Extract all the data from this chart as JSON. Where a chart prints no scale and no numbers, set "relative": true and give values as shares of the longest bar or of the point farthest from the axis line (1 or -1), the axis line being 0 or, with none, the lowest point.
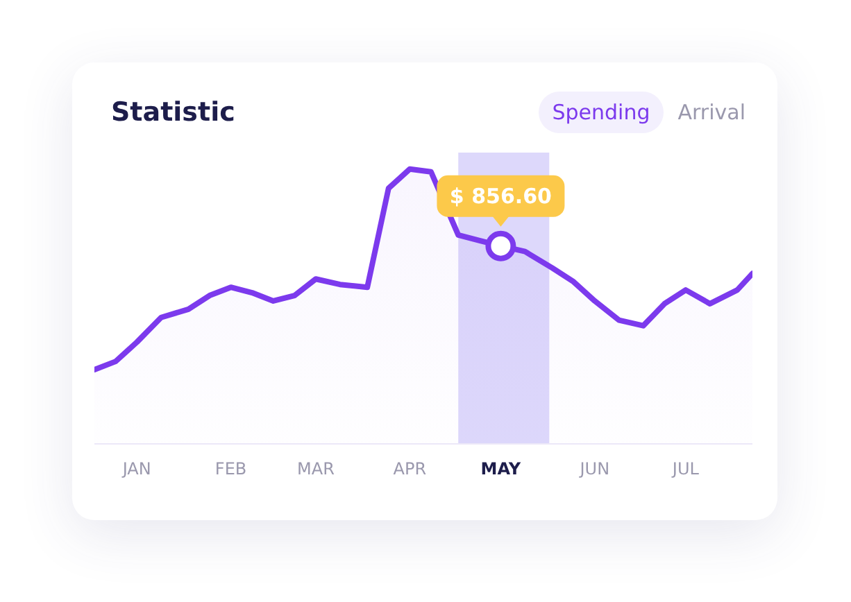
{
  "chart_data": {
    "type": "area",
    "title": "Statistic",
    "relative": true,
    "x": [
      "--01-01",
      "--01-08",
      "--01-15",
      "--01-23",
      "--02-01",
      "--02-08",
      "--02-15",
      "--02-22",
      "--03-01",
      "--03-08",
      "--03-15",
      "--03-23",
      "--04-01",
      "--04-08",
      "--04-15",
      "--04-22",
      "--05-01",
      "--05-08",
      "--05-15",
      "--05-23",
      "--06-01",
      "--06-08",
      "--06-15",
      "--06-23",
      "--07-01",
      "--07-08",
      "--07-15",
      "--07-23",
      "--08-01",
      "--08-06"
    ],
    "series": [
      {
        "name": "Spending",
        "color": "#7c3aed",
        "values": [
          0.27,
          0.3,
          0.37,
          0.46,
          0.49,
          0.54,
          0.57,
          0.55,
          0.52,
          0.54,
          0.6,
          0.58,
          0.57,
          0.93,
          1.0,
          0.99,
          0.76,
          0.74,
          0.72,
          0.7,
          0.64,
          0.59,
          0.52,
          0.45,
          0.43,
          0.51,
          0.56,
          0.51,
          0.56,
          0.62
        ]
      }
    ],
    "xlim": [
      "--01-01",
      "--08-06"
    ],
    "xticks": [
      {
        "value": "--01-15",
        "label": "JAN"
      },
      {
        "value": "--02-15",
        "label": "FEB"
      },
      {
        "value": "--03-15",
        "label": "MAR"
      },
      {
        "value": "--04-15",
        "label": "APR"
      },
      {
        "value": "--05-15",
        "label": "MAY"
      },
      {
        "value": "--06-15",
        "label": "JUN"
      },
      {
        "value": "--07-15",
        "label": "JUL"
      }
    ],
    "bands": [
      {
        "axis": "x",
        "from": "--05-01",
        "to": "--05-31",
        "color": "#ddd8fb"
      }
    ],
    "annotations": [
      {
        "text": "$ 856.60",
        "x": "--05-15",
        "y": 0.72
      },
      "Arrival"
    ],
    "marker": "none",
    "grid": false,
    "legend": false
  }
}
